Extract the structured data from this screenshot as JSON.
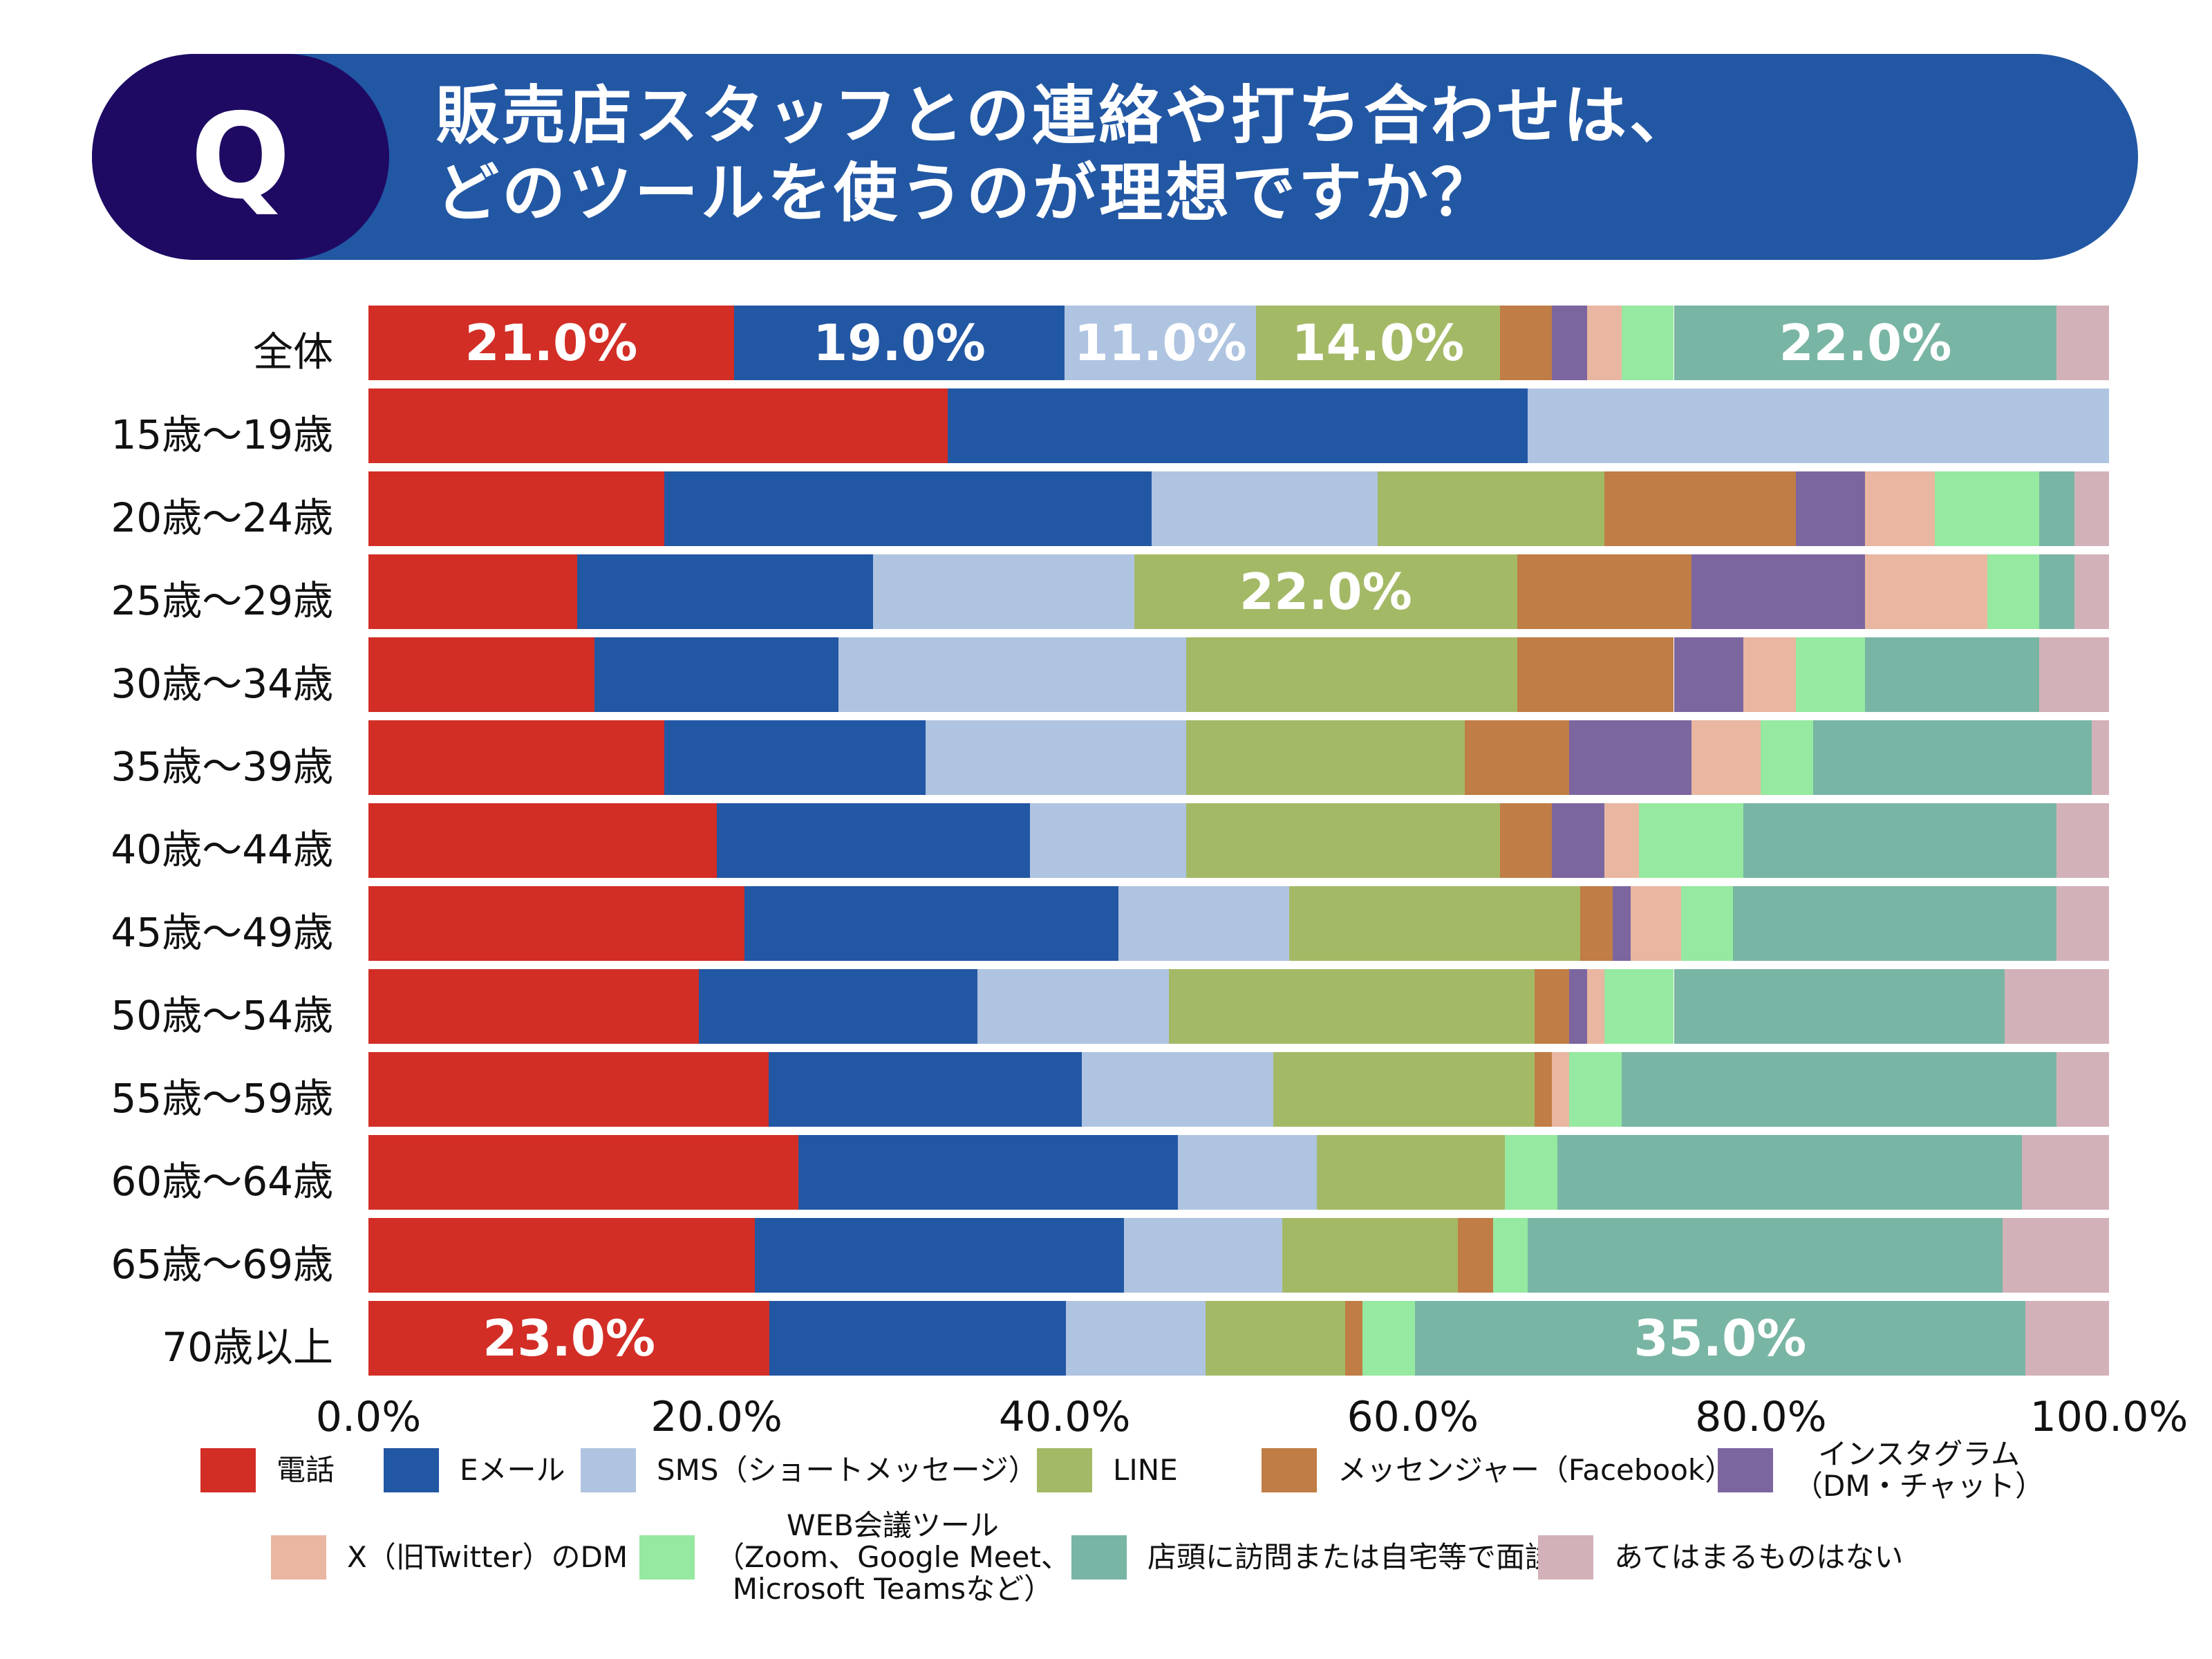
{
  "header": {
    "badge": "Q",
    "title_line1": "販売店スタッフとの連絡や打ち合わせは、",
    "title_line2": "どのツールを使うのが理想ですか？"
  },
  "colors": {
    "header_bg": "#2257a4",
    "badge_bg": "#1e0a63"
  },
  "chart_data": {
    "type": "bar",
    "orientation": "horizontal-stacked-100",
    "xlim": [
      0,
      100
    ],
    "x_ticks": [
      "0.0%",
      "20.0%",
      "40.0%",
      "60.0%",
      "80.0%",
      "100.0%"
    ],
    "legend_position": "bottom",
    "categories": [
      "全体",
      "15歳〜19歳",
      "20歳〜24歳",
      "25歳〜29歳",
      "30歳〜34歳",
      "35歳〜39歳",
      "40歳〜44歳",
      "45歳〜49歳",
      "50歳〜54歳",
      "55歳〜59歳",
      "60歳〜64歳",
      "65歳〜69歳",
      "70歳以上"
    ],
    "series": [
      {
        "name": "電話",
        "color": "#d22e26",
        "values": [
          21,
          33.3,
          17,
          12,
          13,
          17,
          20,
          21.6,
          19,
          23,
          24.7,
          22.2,
          23
        ]
      },
      {
        "name": "Eメール",
        "color": "#2257a4",
        "values": [
          19,
          33.3,
          28,
          17,
          14,
          15,
          18,
          21.5,
          16,
          18,
          21.8,
          21.2,
          17
        ]
      },
      {
        "name": "SMS（ショートメッセージ）",
        "color": "#afc4e0",
        "values": [
          11,
          33.4,
          13,
          15,
          20,
          15,
          9,
          9.8,
          11,
          11,
          8,
          9.1,
          8
        ]
      },
      {
        "name": "LINE",
        "color": "#a4b966",
        "values": [
          14,
          0,
          13,
          22,
          19,
          16,
          18,
          16.7,
          21,
          15,
          10.8,
          10.1,
          8
        ]
      },
      {
        "name": "メッセンジャー（Facebook）",
        "color": "#c07d46",
        "values": [
          3,
          0,
          11,
          10,
          9,
          6,
          3,
          1.9,
          2,
          1,
          0,
          2,
          1
        ]
      },
      {
        "name": "インスタグラム\n（DM・チャット）",
        "color": "#7c66a0",
        "values": [
          2,
          0,
          4,
          10,
          4,
          7,
          3,
          1,
          1,
          0,
          0,
          0,
          0
        ]
      },
      {
        "name": "X（旧Twitter）のDM",
        "color": "#e9b6a1",
        "values": [
          2,
          0,
          4,
          7,
          3,
          4,
          2,
          2.9,
          1,
          1,
          0,
          0,
          0
        ]
      },
      {
        "name": "WEB会議ツール\n（Zoom、Google Meet、\nMicrosoft Teamsなど）",
        "color": "#96e9a0",
        "values": [
          3,
          0,
          6,
          3,
          4,
          3,
          6,
          3,
          4,
          3,
          3,
          2,
          3
        ]
      },
      {
        "name": "店頭に訪問または自宅等で面談",
        "color": "#79b5a4",
        "values": [
          22,
          0,
          2,
          2,
          10,
          16,
          18,
          18.6,
          19,
          25,
          26.7,
          27.3,
          35
        ]
      },
      {
        "name": "あてはまるものはない",
        "color": "#d3b1b8",
        "values": [
          3,
          0,
          2,
          2,
          4,
          1,
          3,
          3,
          6,
          3,
          5,
          6.1,
          4.8
        ]
      }
    ],
    "data_labels": [
      {
        "row": 0,
        "series": 0,
        "text": "21.0%"
      },
      {
        "row": 0,
        "series": 1,
        "text": "19.0%"
      },
      {
        "row": 0,
        "series": 2,
        "text": "11.0%"
      },
      {
        "row": 0,
        "series": 3,
        "text": "14.0%"
      },
      {
        "row": 0,
        "series": 8,
        "text": "22.0%"
      },
      {
        "row": 3,
        "series": 3,
        "text": "22.0%"
      },
      {
        "row": 12,
        "series": 0,
        "text": "23.0%"
      },
      {
        "row": 12,
        "series": 8,
        "text": "35.0%"
      }
    ]
  }
}
